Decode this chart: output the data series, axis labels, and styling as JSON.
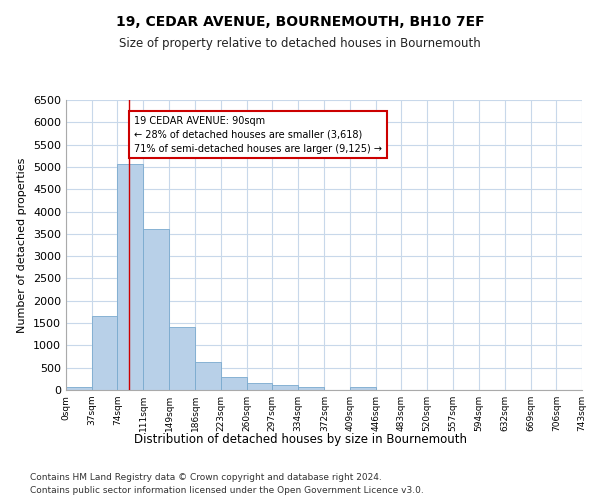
{
  "title": "19, CEDAR AVENUE, BOURNEMOUTH, BH10 7EF",
  "subtitle": "Size of property relative to detached houses in Bournemouth",
  "xlabel": "Distribution of detached houses by size in Bournemouth",
  "ylabel": "Number of detached properties",
  "footnote1": "Contains HM Land Registry data © Crown copyright and database right 2024.",
  "footnote2": "Contains public sector information licensed under the Open Government Licence v3.0.",
  "bar_color": "#b8d0e8",
  "bar_edge_color": "#7aaace",
  "annotation_box_color": "#cc0000",
  "annotation_line_color": "#cc0000",
  "grid_color": "#c8d8ea",
  "background_color": "#ffffff",
  "property_line_x": 90,
  "annotation_text": "19 CEDAR AVENUE: 90sqm\n← 28% of detached houses are smaller (3,618)\n71% of semi-detached houses are larger (9,125) →",
  "bins": [
    0,
    37,
    74,
    111,
    149,
    186,
    223,
    260,
    297,
    334,
    372,
    409,
    446,
    483,
    520,
    557,
    594,
    632,
    669,
    706,
    743
  ],
  "bin_labels": [
    "0sqm",
    "37sqm",
    "74sqm",
    "111sqm",
    "149sqm",
    "186sqm",
    "223sqm",
    "260sqm",
    "297sqm",
    "334sqm",
    "372sqm",
    "409sqm",
    "446sqm",
    "483sqm",
    "520sqm",
    "557sqm",
    "594sqm",
    "632sqm",
    "669sqm",
    "706sqm",
    "743sqm"
  ],
  "counts": [
    75,
    1650,
    5060,
    3600,
    1420,
    620,
    300,
    150,
    110,
    75,
    0,
    70,
    0,
    0,
    0,
    0,
    0,
    0,
    0,
    0
  ],
  "ylim": [
    0,
    6500
  ],
  "yticks": [
    0,
    500,
    1000,
    1500,
    2000,
    2500,
    3000,
    3500,
    4000,
    4500,
    5000,
    5500,
    6000,
    6500
  ]
}
